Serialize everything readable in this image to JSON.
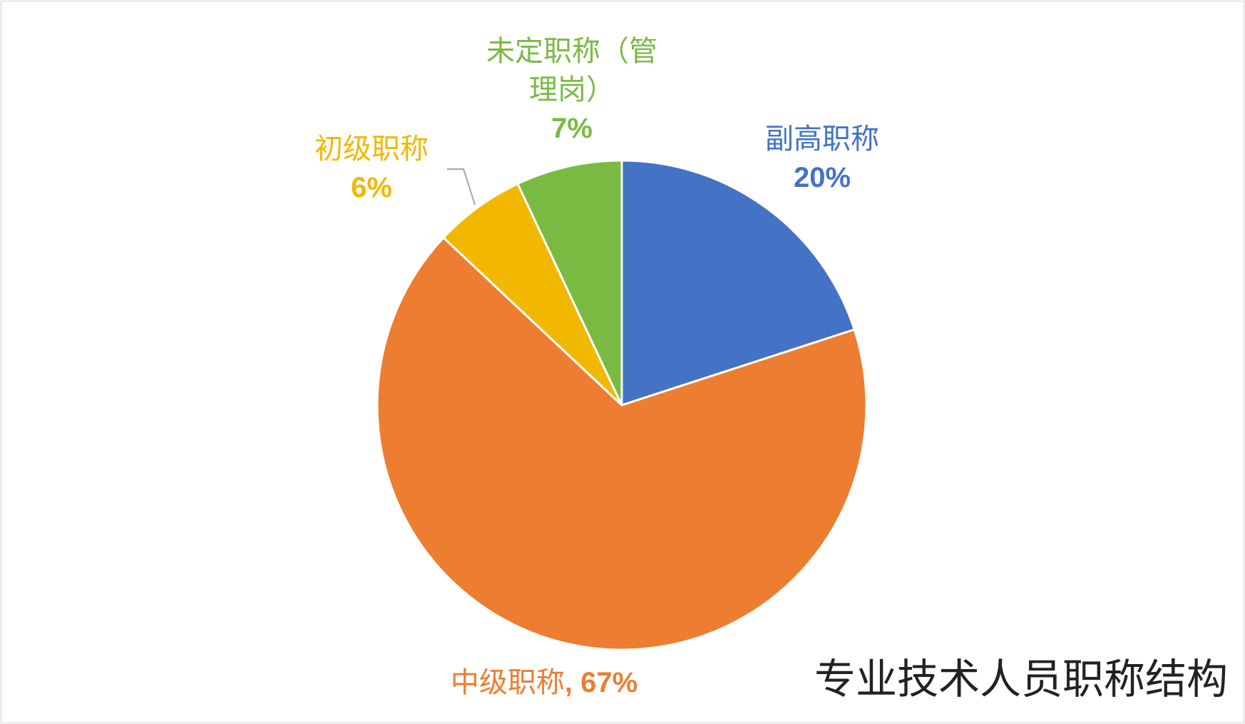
{
  "chart_data": {
    "type": "pie",
    "title": "专业技术人员职称结构",
    "categories": [
      "副高职称",
      "中级职称",
      "初级职称",
      "未定职称（管理岗）"
    ],
    "values": [
      20,
      67,
      6,
      7
    ],
    "value_labels": [
      "20%",
      "67%",
      "6%",
      "7%"
    ],
    "colors": [
      "#4472c4",
      "#ed7d31",
      "#f2b800",
      "#7aba42"
    ],
    "label_separator": ", "
  }
}
